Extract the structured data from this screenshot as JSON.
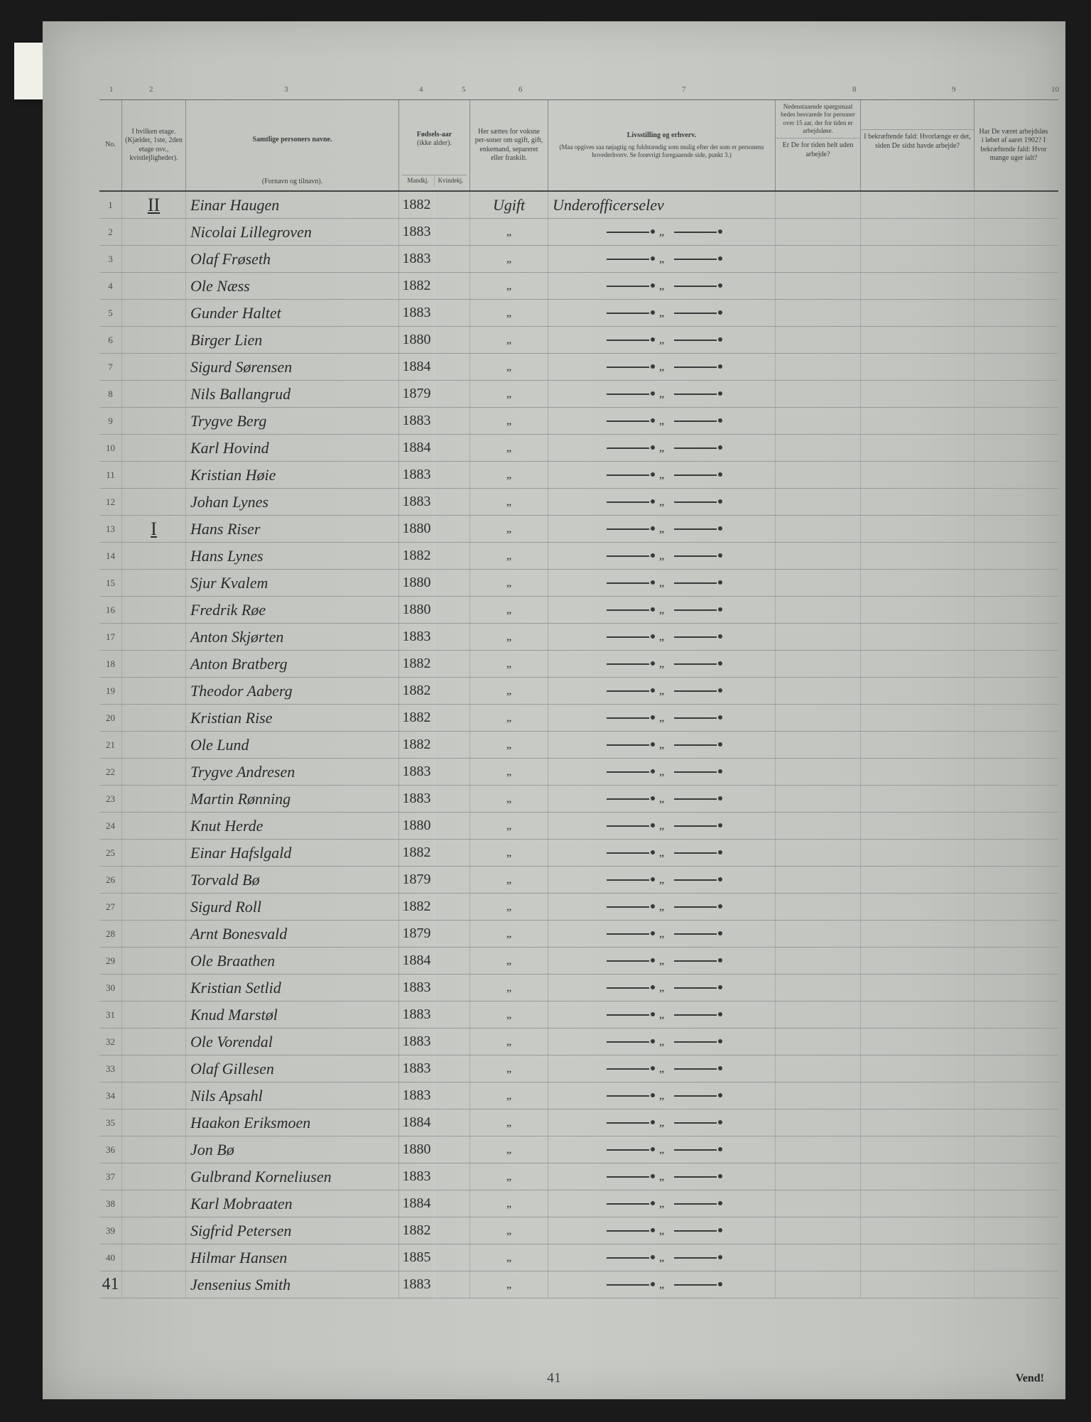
{
  "columns": {
    "numbers": [
      "1",
      "2",
      "3",
      "4",
      "5",
      "6",
      "7",
      "8",
      "9",
      "10"
    ],
    "positions": [
      14,
      70,
      260,
      450,
      510,
      590,
      820,
      1060,
      1200,
      1340
    ]
  },
  "headers": {
    "no": "No.",
    "etage": "I hvilken etage.\n(Kjælder, 1ste, 2den etage osv., kvistlejligheder).",
    "navne_title": "Samtlige personers navne.",
    "navne_sub": "(Fornavn og tilnavn).",
    "fodsel_title": "Fødsels-aar",
    "fodsel_sub": "(ikke alder).",
    "fodsel_m": "Mandkj.",
    "fodsel_k": "Kvindekj.",
    "status": "Her sættes for voksne per-soner om ugift, gift, enkemand, separeret eller fraskilt.",
    "livs_title": "Livsstilling og erhverv.",
    "livs_sub": "(Maa opgives saa nøjagtig og fuldstændig som mulig efter det som er personens hovederhverv. Se forøvrigt foregaaende side, punkt 3.)",
    "q89_top": "Nedenstaaende spørgsmaal bedes besvarede for personer over 15 aar, der for tiden er arbejdsløse.",
    "q8": "Er De for tiden helt uden arbejde?",
    "q9": "I bekræftende fald: Hvorlænge er det, siden De sidst havde arbejde?",
    "q10": "Har De været arbejdsløs i løbet af aaret 1902? I bekræftende fald: Hvor mange uger ialt?"
  },
  "rows": [
    {
      "no": "1",
      "etage": "II",
      "name": "Einar Haugen",
      "year": "1882",
      "status": "Ugift",
      "livs": "Underofficerselev"
    },
    {
      "no": "2",
      "etage": "",
      "name": "Nicolai Lillegroven",
      "year": "1883",
      "status": "„",
      "livs": "—„—"
    },
    {
      "no": "3",
      "etage": "",
      "name": "Olaf Frøseth",
      "year": "1883",
      "status": "„",
      "livs": "—„—"
    },
    {
      "no": "4",
      "etage": "",
      "name": "Ole Næss",
      "year": "1882",
      "status": "„",
      "livs": "—„—"
    },
    {
      "no": "5",
      "etage": "",
      "name": "Gunder Haltet",
      "year": "1883",
      "status": "„",
      "livs": "—„—"
    },
    {
      "no": "6",
      "etage": "",
      "name": "Birger Lien",
      "year": "1880",
      "status": "„",
      "livs": "—„—"
    },
    {
      "no": "7",
      "etage": "",
      "name": "Sigurd Sørensen",
      "year": "1884",
      "status": "„",
      "livs": "—„—"
    },
    {
      "no": "8",
      "etage": "",
      "name": "Nils Ballangrud",
      "year": "1879",
      "status": "„",
      "livs": "—„—"
    },
    {
      "no": "9",
      "etage": "",
      "name": "Trygve Berg",
      "year": "1883",
      "status": "„",
      "livs": "—„—"
    },
    {
      "no": "10",
      "etage": "",
      "name": "Karl Hovind",
      "year": "1884",
      "status": "„",
      "livs": "—„—"
    },
    {
      "no": "11",
      "etage": "",
      "name": "Kristian Høie",
      "year": "1883",
      "status": "„",
      "livs": "—„—"
    },
    {
      "no": "12",
      "etage": "",
      "name": "Johan Lynes",
      "year": "1883",
      "status": "„",
      "livs": "—„—"
    },
    {
      "no": "13",
      "etage": "I",
      "name": "Hans Riser",
      "year": "1880",
      "status": "„",
      "livs": "—„—"
    },
    {
      "no": "14",
      "etage": "",
      "name": "Hans Lynes",
      "year": "1882",
      "status": "„",
      "livs": "—„—"
    },
    {
      "no": "15",
      "etage": "",
      "name": "Sjur Kvalem",
      "year": "1880",
      "status": "„",
      "livs": "—„—"
    },
    {
      "no": "16",
      "etage": "",
      "name": "Fredrik Røe",
      "year": "1880",
      "status": "„",
      "livs": "—„—"
    },
    {
      "no": "17",
      "etage": "",
      "name": "Anton Skjørten",
      "year": "1883",
      "status": "„",
      "livs": "—„—"
    },
    {
      "no": "18",
      "etage": "",
      "name": "Anton Bratberg",
      "year": "1882",
      "status": "„",
      "livs": "—„—"
    },
    {
      "no": "19",
      "etage": "",
      "name": "Theodor Aaberg",
      "year": "1882",
      "status": "„",
      "livs": "—„—"
    },
    {
      "no": "20",
      "etage": "",
      "name": "Kristian Rise",
      "year": "1882",
      "status": "„",
      "livs": "—„—"
    },
    {
      "no": "21",
      "etage": "",
      "name": "Ole Lund",
      "year": "1882",
      "status": "„",
      "livs": "—„—"
    },
    {
      "no": "22",
      "etage": "",
      "name": "Trygve Andresen",
      "year": "1883",
      "status": "„",
      "livs": "—„—"
    },
    {
      "no": "23",
      "etage": "",
      "name": "Martin Rønning",
      "year": "1883",
      "status": "„",
      "livs": "—„—"
    },
    {
      "no": "24",
      "etage": "",
      "name": "Knut Herde",
      "year": "1880",
      "status": "„",
      "livs": "—„—"
    },
    {
      "no": "25",
      "etage": "",
      "name": "Einar Hafslgald",
      "year": "1882",
      "status": "„",
      "livs": "—„—"
    },
    {
      "no": "26",
      "etage": "",
      "name": "Torvald Bø",
      "year": "1879",
      "status": "„",
      "livs": "—„—"
    },
    {
      "no": "27",
      "etage": "",
      "name": "Sigurd Roll",
      "year": "1882",
      "status": "„",
      "livs": "—„—"
    },
    {
      "no": "28",
      "etage": "",
      "name": "Arnt Bonesvald",
      "year": "1879",
      "status": "„",
      "livs": "—„—"
    },
    {
      "no": "29",
      "etage": "",
      "name": "Ole Braathen",
      "year": "1884",
      "status": "„",
      "livs": "—„—"
    },
    {
      "no": "30",
      "etage": "",
      "name": "Kristian Setlid",
      "year": "1883",
      "status": "„",
      "livs": "—„—"
    },
    {
      "no": "31",
      "etage": "",
      "name": "Knud Marstøl",
      "year": "1883",
      "status": "„",
      "livs": "—„—"
    },
    {
      "no": "32",
      "etage": "",
      "name": "Ole Vorendal",
      "year": "1883",
      "status": "„",
      "livs": "—„—"
    },
    {
      "no": "33",
      "etage": "",
      "name": "Olaf Gillesen",
      "year": "1883",
      "status": "„",
      "livs": "—„—"
    },
    {
      "no": "34",
      "etage": "",
      "name": "Nils Apsahl",
      "year": "1883",
      "status": "„",
      "livs": "—„—"
    },
    {
      "no": "35",
      "etage": "",
      "name": "Haakon Eriksmoen",
      "year": "1884",
      "status": "„",
      "livs": "—„—"
    },
    {
      "no": "36",
      "etage": "",
      "name": "Jon Bø",
      "year": "1880",
      "status": "„",
      "livs": "—„—"
    },
    {
      "no": "37",
      "etage": "",
      "name": "Gulbrand Korneliusen",
      "year": "1883",
      "status": "„",
      "livs": "—„—"
    },
    {
      "no": "38",
      "etage": "",
      "name": "Karl Mobraaten",
      "year": "1884",
      "status": "„",
      "livs": "—„—"
    },
    {
      "no": "39",
      "etage": "",
      "name": "Sigfrid Petersen",
      "year": "1882",
      "status": "„",
      "livs": "—„—"
    },
    {
      "no": "40",
      "etage": "",
      "name": "Hilmar Hansen",
      "year": "1885",
      "status": "„",
      "livs": "—„—"
    },
    {
      "no": "41",
      "etage": "",
      "name": "Jensenius Smith",
      "year": "1883",
      "status": "„",
      "livs": "—„—",
      "handwritten_no": true
    }
  ],
  "footer": {
    "vend": "Vend!",
    "count": "41"
  }
}
